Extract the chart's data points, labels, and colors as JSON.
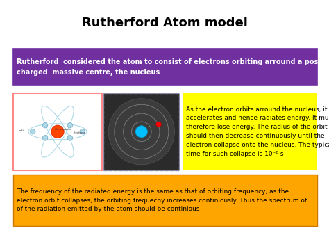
{
  "title": "Rutherford Atom model",
  "title_fontsize": 13,
  "title_fontweight": "bold",
  "bg_color": "#ffffff",
  "purple_box": {
    "text": "Rutherford  considered the atom to consist of electrons orbiting arround a positively\ncharged  massive centre, the nucleus",
    "bg_color": "#7030A0",
    "text_color": "#ffffff",
    "fontsize": 7.0,
    "fontweight": "bold"
  },
  "yellow_box": {
    "text": "As the electron orbits arround the nucleus, it\naccelerates and hence radiates energy. It must\ntherefore lose energy. The radius of the orbit\nshould then decrease continuously until the\nelectron collapse onto the nucleus. The typical\ntime for such collapse is 10⁻⁸ s",
    "bg_color": "#FFFF00",
    "text_color": "#000000",
    "fontsize": 6.5,
    "fontweight": "normal"
  },
  "orange_box": {
    "text": "The frequency of the radiated energy is the same as that of orbiting frequency, as the\nelectron orbit collapses, the orbiting frequecny increases continiously. Thus the spectrum of\nof the radiation emitted by the atom should be continious",
    "bg_color": "#FFA500",
    "text_color": "#000000",
    "fontsize": 6.5,
    "fontweight": "normal"
  },
  "atom_diagram": {
    "nucleus_color": "#FF4500",
    "orbit_color": "#ADD8E6",
    "electron_color": "#ADD8E6",
    "bg_color": "#ffffff",
    "border_color": "#FF8888"
  },
  "dark_atom": {
    "bg_color": "#2B2B2B",
    "nucleus_color": "#00BFFF",
    "orbit_color": "#555555",
    "electron_color": "#FF0000",
    "border_color": "#9999CC"
  },
  "layout": {
    "fig_w": 4.74,
    "fig_h": 3.35,
    "dpi": 100
  }
}
